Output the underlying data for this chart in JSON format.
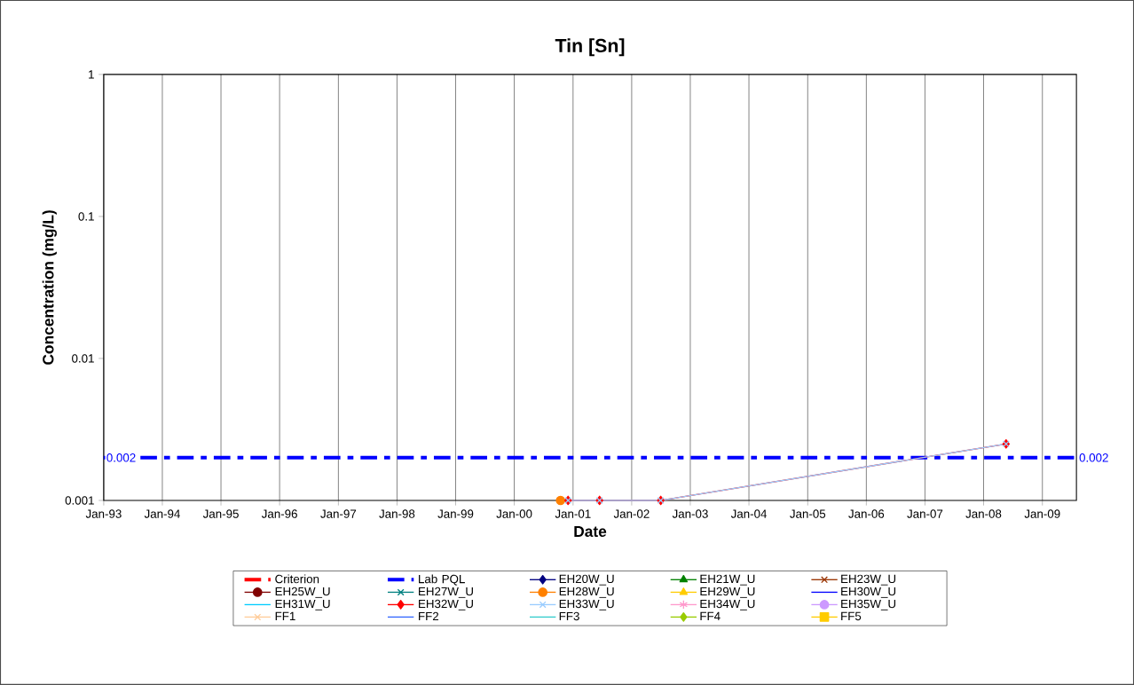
{
  "chart_data": {
    "type": "line",
    "title": "Tin [Sn]",
    "xlabel": "Date",
    "ylabel": "Concentration (mg/L)",
    "log": "y",
    "grid": "x",
    "legend": "bottom",
    "xlim": [
      "1993-01-01",
      "2009-08-01"
    ],
    "xticks": [
      {
        "value": "1993-01-01",
        "label": "Jan-93"
      },
      {
        "value": "1994-01-01",
        "label": "Jan-94"
      },
      {
        "value": "1995-01-01",
        "label": "Jan-95"
      },
      {
        "value": "1996-01-01",
        "label": "Jan-96"
      },
      {
        "value": "1997-01-01",
        "label": "Jan-97"
      },
      {
        "value": "1998-01-01",
        "label": "Jan-98"
      },
      {
        "value": "1999-01-01",
        "label": "Jan-99"
      },
      {
        "value": "2000-01-01",
        "label": "Jan-00"
      },
      {
        "value": "2001-01-01",
        "label": "Jan-01"
      },
      {
        "value": "2002-01-01",
        "label": "Jan-02"
      },
      {
        "value": "2003-01-01",
        "label": "Jan-03"
      },
      {
        "value": "2004-01-01",
        "label": "Jan-04"
      },
      {
        "value": "2005-01-01",
        "label": "Jan-05"
      },
      {
        "value": "2006-01-01",
        "label": "Jan-06"
      },
      {
        "value": "2007-01-01",
        "label": "Jan-07"
      },
      {
        "value": "2008-01-01",
        "label": "Jan-08"
      },
      {
        "value": "2009-01-01",
        "label": "Jan-09"
      }
    ],
    "ylim": [
      0.001,
      1
    ],
    "yticks": [
      0.001,
      0.01,
      0.1,
      1
    ],
    "series": [
      {
        "name": "Criterion",
        "color": "#ff0000",
        "line_style": "dashed",
        "marker": "none"
      },
      {
        "name": "Lab PQL",
        "color": "#0000ff",
        "line_style": "dashed",
        "marker": "none",
        "x": [
          "1993-01-01",
          "2009-08-01"
        ],
        "values": [
          0.002,
          0.002
        ],
        "value_labels": [
          "0.002",
          "0.002"
        ]
      },
      {
        "name": "EH20W_U",
        "color": "#000080",
        "marker": "diamond"
      },
      {
        "name": "EH21W_U",
        "color": "#008000",
        "marker": "triangle"
      },
      {
        "name": "EH23W_U",
        "color": "#993300",
        "marker": "cross"
      },
      {
        "name": "EH25W_U",
        "color": "#800000",
        "marker": "circle"
      },
      {
        "name": "EH27W_U",
        "color": "#008080",
        "marker": "cross"
      },
      {
        "name": "EH28W_U",
        "color": "#ff8000",
        "marker": "circle",
        "x": [
          "2000-10-15"
        ],
        "values": [
          0.001
        ]
      },
      {
        "name": "EH29W_U",
        "color": "#ffcc00",
        "marker": "triangle"
      },
      {
        "name": "EH30W_U",
        "color": "#0000ff",
        "marker": "none"
      },
      {
        "name": "EH31W_U",
        "color": "#00ccff",
        "marker": "none"
      },
      {
        "name": "EH32W_U",
        "color": "#ff0000",
        "marker": "diamond",
        "x": [
          "2000-12-01",
          "2001-06-15",
          "2002-07-01",
          "2008-05-20"
        ],
        "values": [
          0.001,
          0.001,
          0.001,
          0.0025
        ]
      },
      {
        "name": "EH33W_U",
        "color": "#99ccff",
        "marker": "cross",
        "x": [
          "2000-12-01",
          "2001-06-15",
          "2002-07-01",
          "2008-05-20"
        ],
        "values": [
          0.001,
          0.001,
          0.001,
          0.0025
        ]
      },
      {
        "name": "EH34W_U",
        "color": "#ff99cc",
        "marker": "star"
      },
      {
        "name": "EH35W_U",
        "color": "#cc99ff",
        "marker": "circle"
      },
      {
        "name": "FF1",
        "color": "#ffcc99",
        "marker": "cross"
      },
      {
        "name": "FF2",
        "color": "#3366ff",
        "marker": "none"
      },
      {
        "name": "FF3",
        "color": "#33cccc",
        "marker": "none"
      },
      {
        "name": "FF4",
        "color": "#99cc00",
        "marker": "diamond"
      },
      {
        "name": "FF5",
        "color": "#ffcc00",
        "marker": "square"
      }
    ]
  }
}
